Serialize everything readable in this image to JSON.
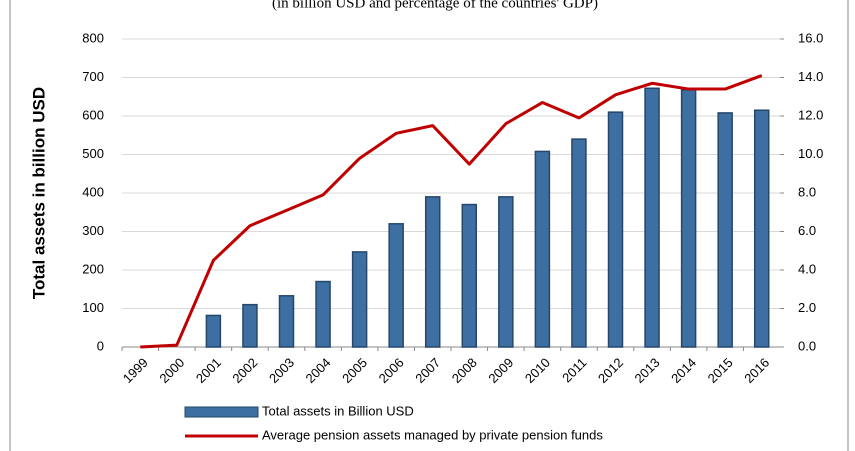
{
  "chart_data": {
    "type": "bar_line",
    "subtitle": "(in billion USD and percentage of the countries' GDP)",
    "y_label": "Total assets in billion USD",
    "categories": [
      "1999",
      "2000",
      "2001",
      "2002",
      "2003",
      "2004",
      "2005",
      "2006",
      "2007",
      "2008",
      "2009",
      "2010",
      "2011",
      "2012",
      "2013",
      "2014",
      "2015",
      "2016"
    ],
    "series": [
      {
        "name": "Total assets in Billion USD",
        "type": "bar",
        "color": "#3e6fa3",
        "values": [
          null,
          null,
          82,
          110,
          133,
          170,
          247,
          320,
          390,
          370,
          390,
          508,
          540,
          610,
          672,
          668,
          608,
          615
        ]
      },
      {
        "name": "Average pension assets managed by private pension funds",
        "type": "line",
        "axis": "y2",
        "color": "#c00000",
        "values": [
          0.0,
          0.1,
          4.5,
          6.3,
          7.1,
          7.9,
          9.8,
          11.1,
          11.5,
          9.5,
          11.6,
          12.7,
          11.9,
          13.1,
          13.7,
          13.4,
          13.4,
          14.1
        ]
      }
    ],
    "ylim": [
      0,
      800
    ],
    "yticks": [
      0,
      100,
      200,
      300,
      400,
      500,
      600,
      700,
      800
    ],
    "y2lim": [
      0,
      16
    ],
    "y2ticks": [
      {
        "value": 0,
        "label": "0.0"
      },
      {
        "value": 2,
        "label": "2.0"
      },
      {
        "value": 4,
        "label": "4.0"
      },
      {
        "value": 6,
        "label": "6.0"
      },
      {
        "value": 8,
        "label": "8.0"
      },
      {
        "value": 10,
        "label": "10.0"
      },
      {
        "value": 12,
        "label": "12.0"
      },
      {
        "value": 14,
        "label": "14.0"
      },
      {
        "value": 16,
        "label": "16.0"
      }
    ],
    "grid": true,
    "legend": "bottom"
  }
}
